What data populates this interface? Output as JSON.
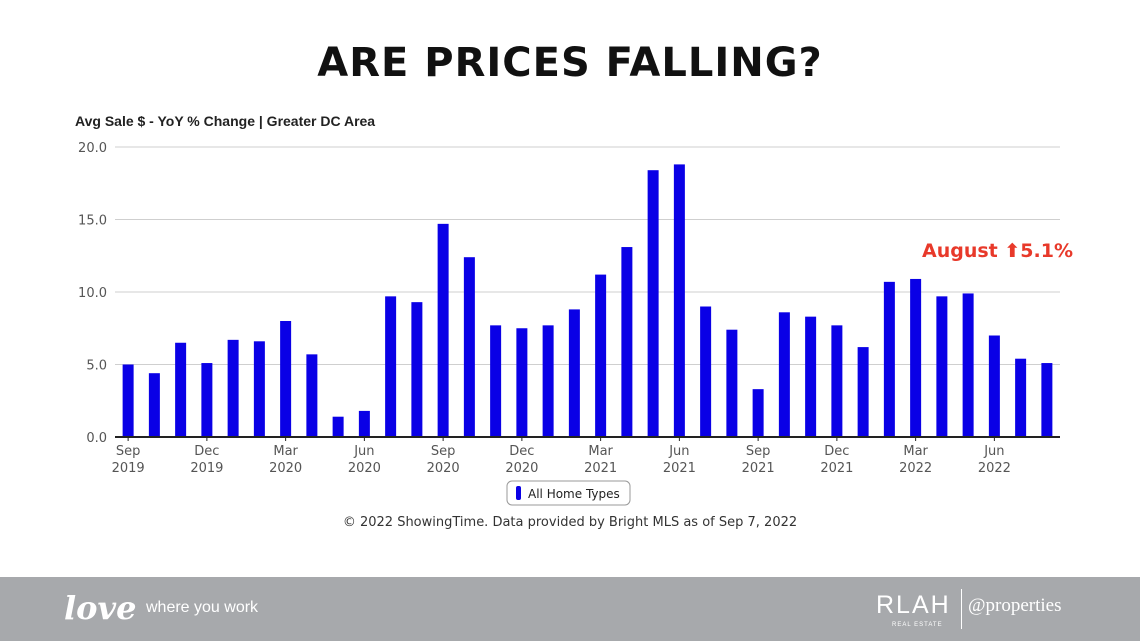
{
  "slide": {
    "title": "ARE PRICES FALLING?",
    "source_note": "© 2022 ShowingTime. Data provided by Bright MLS as of Sep 7, 2022"
  },
  "chart_data": {
    "type": "bar",
    "title": "Avg Sale $ - YoY % Change | Greater DC Area",
    "xlabel": "",
    "ylabel": "",
    "ylim": [
      0,
      20
    ],
    "yticks": [
      "0.0",
      "5.0",
      "10.0",
      "15.0",
      "20.0"
    ],
    "grid": true,
    "legend_position": "bottom-center",
    "bar_color": "#0a00e6",
    "annotation_color": "#e8392a",
    "annotation": "August ⬆5.1%",
    "categories": [
      "Sep 2019",
      "Oct 2019",
      "Nov 2019",
      "Dec 2019",
      "Jan 2020",
      "Feb 2020",
      "Mar 2020",
      "Apr 2020",
      "May 2020",
      "Jun 2020",
      "Jul 2020",
      "Aug 2020",
      "Sep 2020",
      "Oct 2020",
      "Nov 2020",
      "Dec 2020",
      "Jan 2021",
      "Feb 2021",
      "Mar 2021",
      "Apr 2021",
      "May 2021",
      "Jun 2021",
      "Jul 2021",
      "Aug 2021",
      "Sep 2021",
      "Oct 2021",
      "Nov 2021",
      "Dec 2021",
      "Jan 2022",
      "Feb 2022",
      "Mar 2022",
      "Apr 2022",
      "May 2022",
      "Jun 2022",
      "Jul 2022",
      "Aug 2022"
    ],
    "tick_labels": [
      {
        "index": 0,
        "month": "Sep",
        "year": "2019"
      },
      {
        "index": 3,
        "month": "Dec",
        "year": "2019"
      },
      {
        "index": 6,
        "month": "Mar",
        "year": "2020"
      },
      {
        "index": 9,
        "month": "Jun",
        "year": "2020"
      },
      {
        "index": 12,
        "month": "Sep",
        "year": "2020"
      },
      {
        "index": 15,
        "month": "Dec",
        "year": "2020"
      },
      {
        "index": 18,
        "month": "Mar",
        "year": "2021"
      },
      {
        "index": 21,
        "month": "Jun",
        "year": "2021"
      },
      {
        "index": 24,
        "month": "Sep",
        "year": "2021"
      },
      {
        "index": 27,
        "month": "Dec",
        "year": "2021"
      },
      {
        "index": 30,
        "month": "Mar",
        "year": "2022"
      },
      {
        "index": 33,
        "month": "Jun",
        "year": "2022"
      }
    ],
    "series": [
      {
        "name": "All Home Types",
        "values": [
          5.0,
          4.4,
          6.5,
          5.1,
          6.7,
          6.6,
          8.0,
          5.7,
          1.4,
          1.8,
          9.7,
          9.3,
          14.7,
          12.4,
          7.7,
          7.5,
          7.7,
          8.8,
          11.2,
          13.1,
          18.4,
          18.8,
          9.0,
          7.4,
          3.3,
          8.6,
          8.3,
          7.7,
          6.2,
          10.7,
          10.9,
          9.7,
          9.9,
          7.0,
          5.4,
          5.1
        ]
      }
    ]
  },
  "footer": {
    "logo_text": "love",
    "tagline": "where you work",
    "brand": "RLAH",
    "brand_sub": "REAL ESTATE",
    "partner": "@properties"
  }
}
